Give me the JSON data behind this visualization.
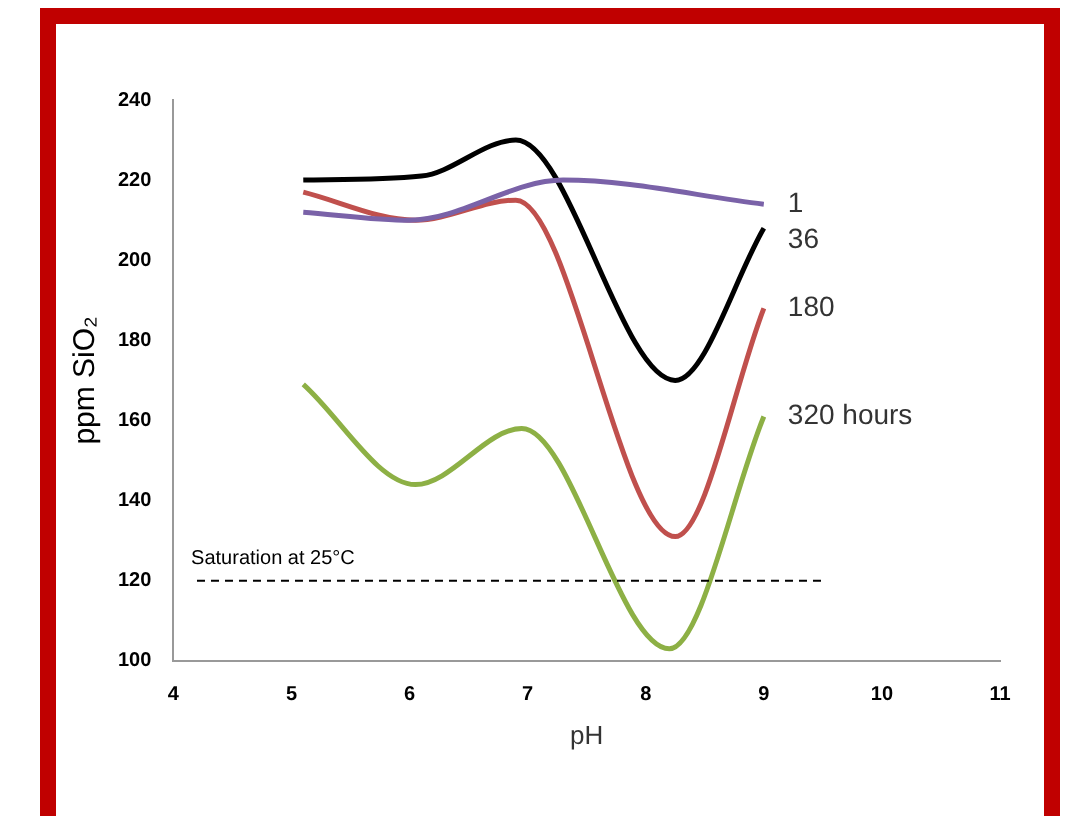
{
  "chart_data": {
    "type": "line",
    "xlabel": "pH",
    "ylabel": "ppm SiO₂",
    "xlim": [
      4,
      11
    ],
    "xticks": [
      4,
      5,
      6,
      7,
      8,
      9,
      10,
      11
    ],
    "ylim": [
      100,
      240
    ],
    "yticks": [
      100,
      120,
      140,
      160,
      180,
      200,
      220,
      240
    ],
    "grid": false,
    "legend": false,
    "marker": "none",
    "line_style": "solid",
    "series": [
      {
        "name": "1",
        "color": "#7a62a8",
        "x": [
          5.1,
          6,
          7.3,
          9
        ],
        "values": [
          212,
          210,
          220,
          214
        ]
      },
      {
        "name": "36",
        "color": "#000000",
        "x": [
          5.1,
          6.1,
          6.9,
          8.25,
          9
        ],
        "values": [
          220,
          221,
          230,
          170,
          208
        ]
      },
      {
        "name": "180",
        "color": "#c0504d",
        "x": [
          5.1,
          6.05,
          6.9,
          8.25,
          9
        ],
        "values": [
          217,
          210,
          215,
          131,
          188
        ]
      },
      {
        "name": "320 hours",
        "color": "#8db045",
        "x": [
          5.1,
          6.05,
          6.95,
          8.2,
          9
        ],
        "values": [
          169,
          144,
          158,
          103,
          161
        ]
      }
    ],
    "ref_lines": [
      {
        "axis": "y",
        "value": 120,
        "label": "Saturation at 25°C",
        "color": "#000000",
        "line_style": "dashed"
      }
    ]
  }
}
